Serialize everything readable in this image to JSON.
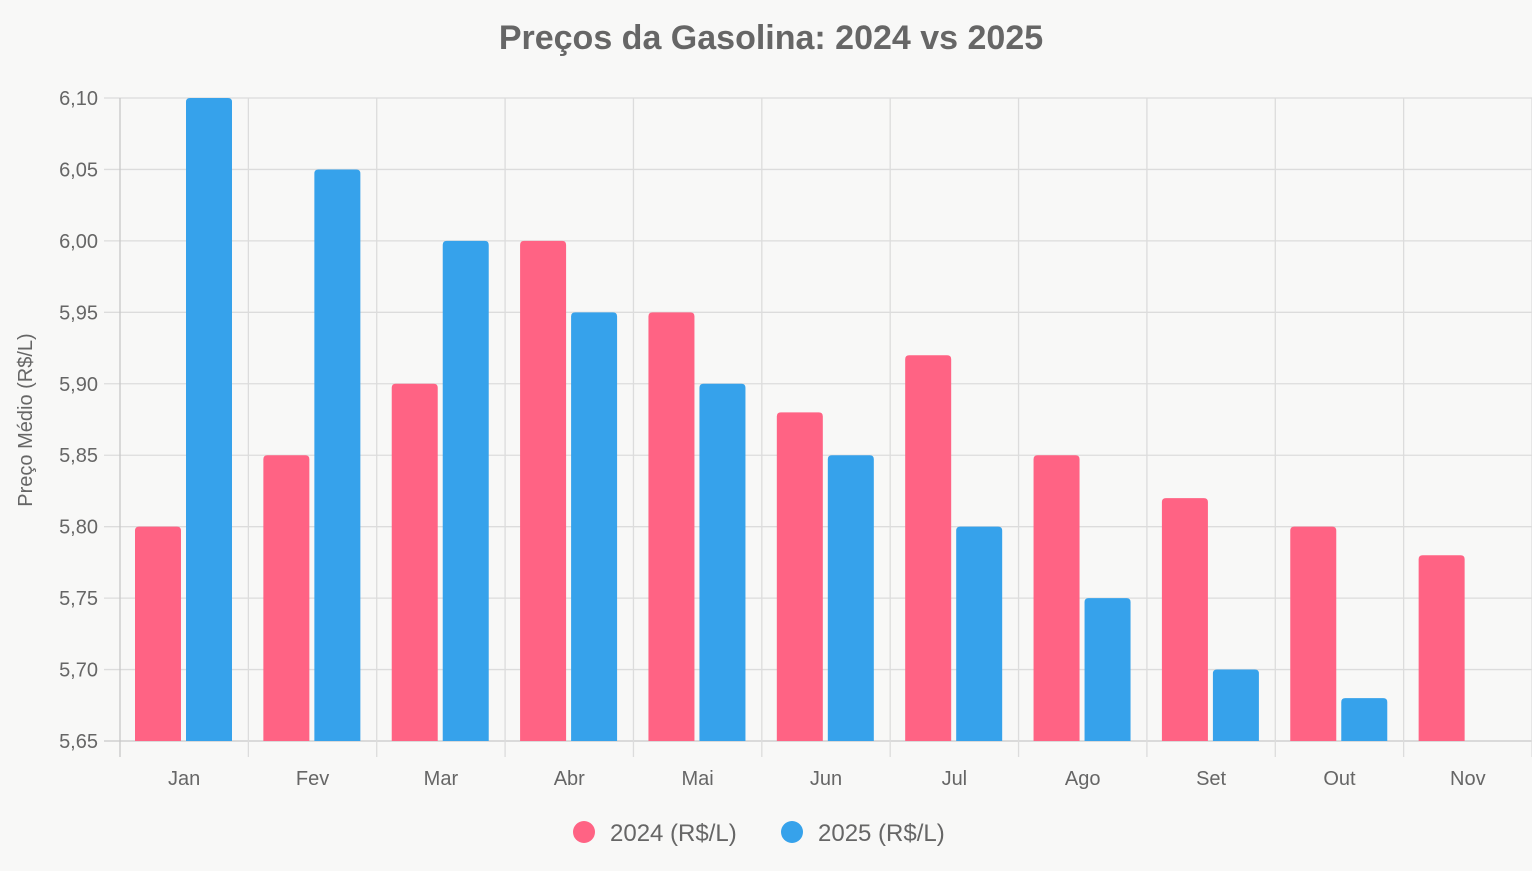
{
  "chart_data": {
    "type": "bar",
    "title": "Preços da Gasolina: 2024 vs 2025",
    "xlabel": "",
    "ylabel": "Preço Médio (R$/L)",
    "ylim": [
      5.65,
      6.1
    ],
    "yticks": [
      "5,65",
      "5,70",
      "5,75",
      "5,80",
      "5,85",
      "5,90",
      "5,95",
      "6,00",
      "6,05",
      "6,10"
    ],
    "ytick_values": [
      5.65,
      5.7,
      5.75,
      5.8,
      5.85,
      5.9,
      5.95,
      6.0,
      6.05,
      6.1
    ],
    "grid": true,
    "legend_position": "bottom",
    "categories": [
      "Jan",
      "Fev",
      "Mar",
      "Abr",
      "Mai",
      "Jun",
      "Jul",
      "Ago",
      "Set",
      "Out",
      "Nov"
    ],
    "series": [
      {
        "name": "2024 (R$/L)",
        "color": "#ff6384",
        "values": [
          5.8,
          5.85,
          5.9,
          6.0,
          5.95,
          5.88,
          5.92,
          5.85,
          5.82,
          5.8,
          5.78
        ]
      },
      {
        "name": "2025 (R$/L)",
        "color": "#36a2eb",
        "values": [
          6.1,
          6.05,
          6.0,
          5.95,
          5.9,
          5.85,
          5.8,
          5.75,
          5.7,
          5.68,
          null
        ]
      }
    ]
  }
}
